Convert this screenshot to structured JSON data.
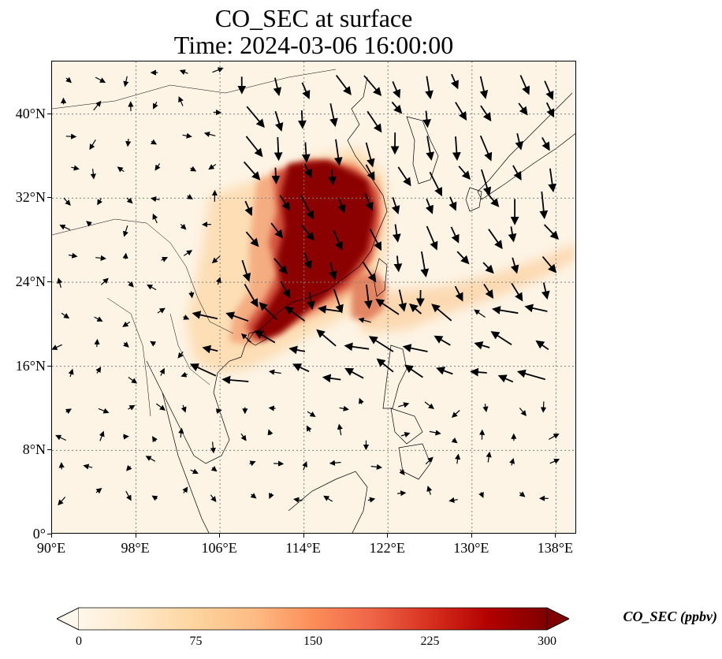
{
  "title": {
    "line1": "CO_SEC at surface",
    "line2": "Time: 2024-03-06 16:00:00"
  },
  "map": {
    "variable": "CO_SEC",
    "level": "surface",
    "lon_range": [
      90,
      140
    ],
    "lat_range": [
      0,
      45
    ],
    "gridlines": "dotted",
    "lat_ticks": [
      "0°",
      "8°N",
      "16°N",
      "24°N",
      "32°N",
      "40°N"
    ],
    "lat_tick_values": [
      0,
      8,
      16,
      24,
      32,
      40
    ],
    "lon_ticks": [
      "90°E",
      "98°E",
      "106°E",
      "114°E",
      "122°E",
      "130°E",
      "138°E"
    ],
    "lon_tick_values": [
      90,
      98,
      106,
      114,
      122,
      130,
      138
    ],
    "features": [
      "coastlines",
      "country borders",
      "wind vectors",
      "concentration field"
    ],
    "plume_colors": {
      "low": "#fdf4e6",
      "light": "#fdd9a8",
      "medium": "#f3a97a",
      "high": "#d3503a",
      "very_high": "#8b0000"
    }
  },
  "colorbar": {
    "label": "CO_SEC (ppbv)",
    "ticks": [
      "0",
      "75",
      "150",
      "225",
      "300"
    ],
    "tick_values": [
      0,
      75,
      150,
      225,
      300
    ],
    "vmin": 0,
    "vmax": 300,
    "extend": "both",
    "colormap": "OrRd",
    "colors": [
      "#fff7ec",
      "#fee8c8",
      "#fdd49e",
      "#fdbb84",
      "#fc8d59",
      "#ef6548",
      "#d7301f",
      "#b30000",
      "#7f0000"
    ]
  }
}
